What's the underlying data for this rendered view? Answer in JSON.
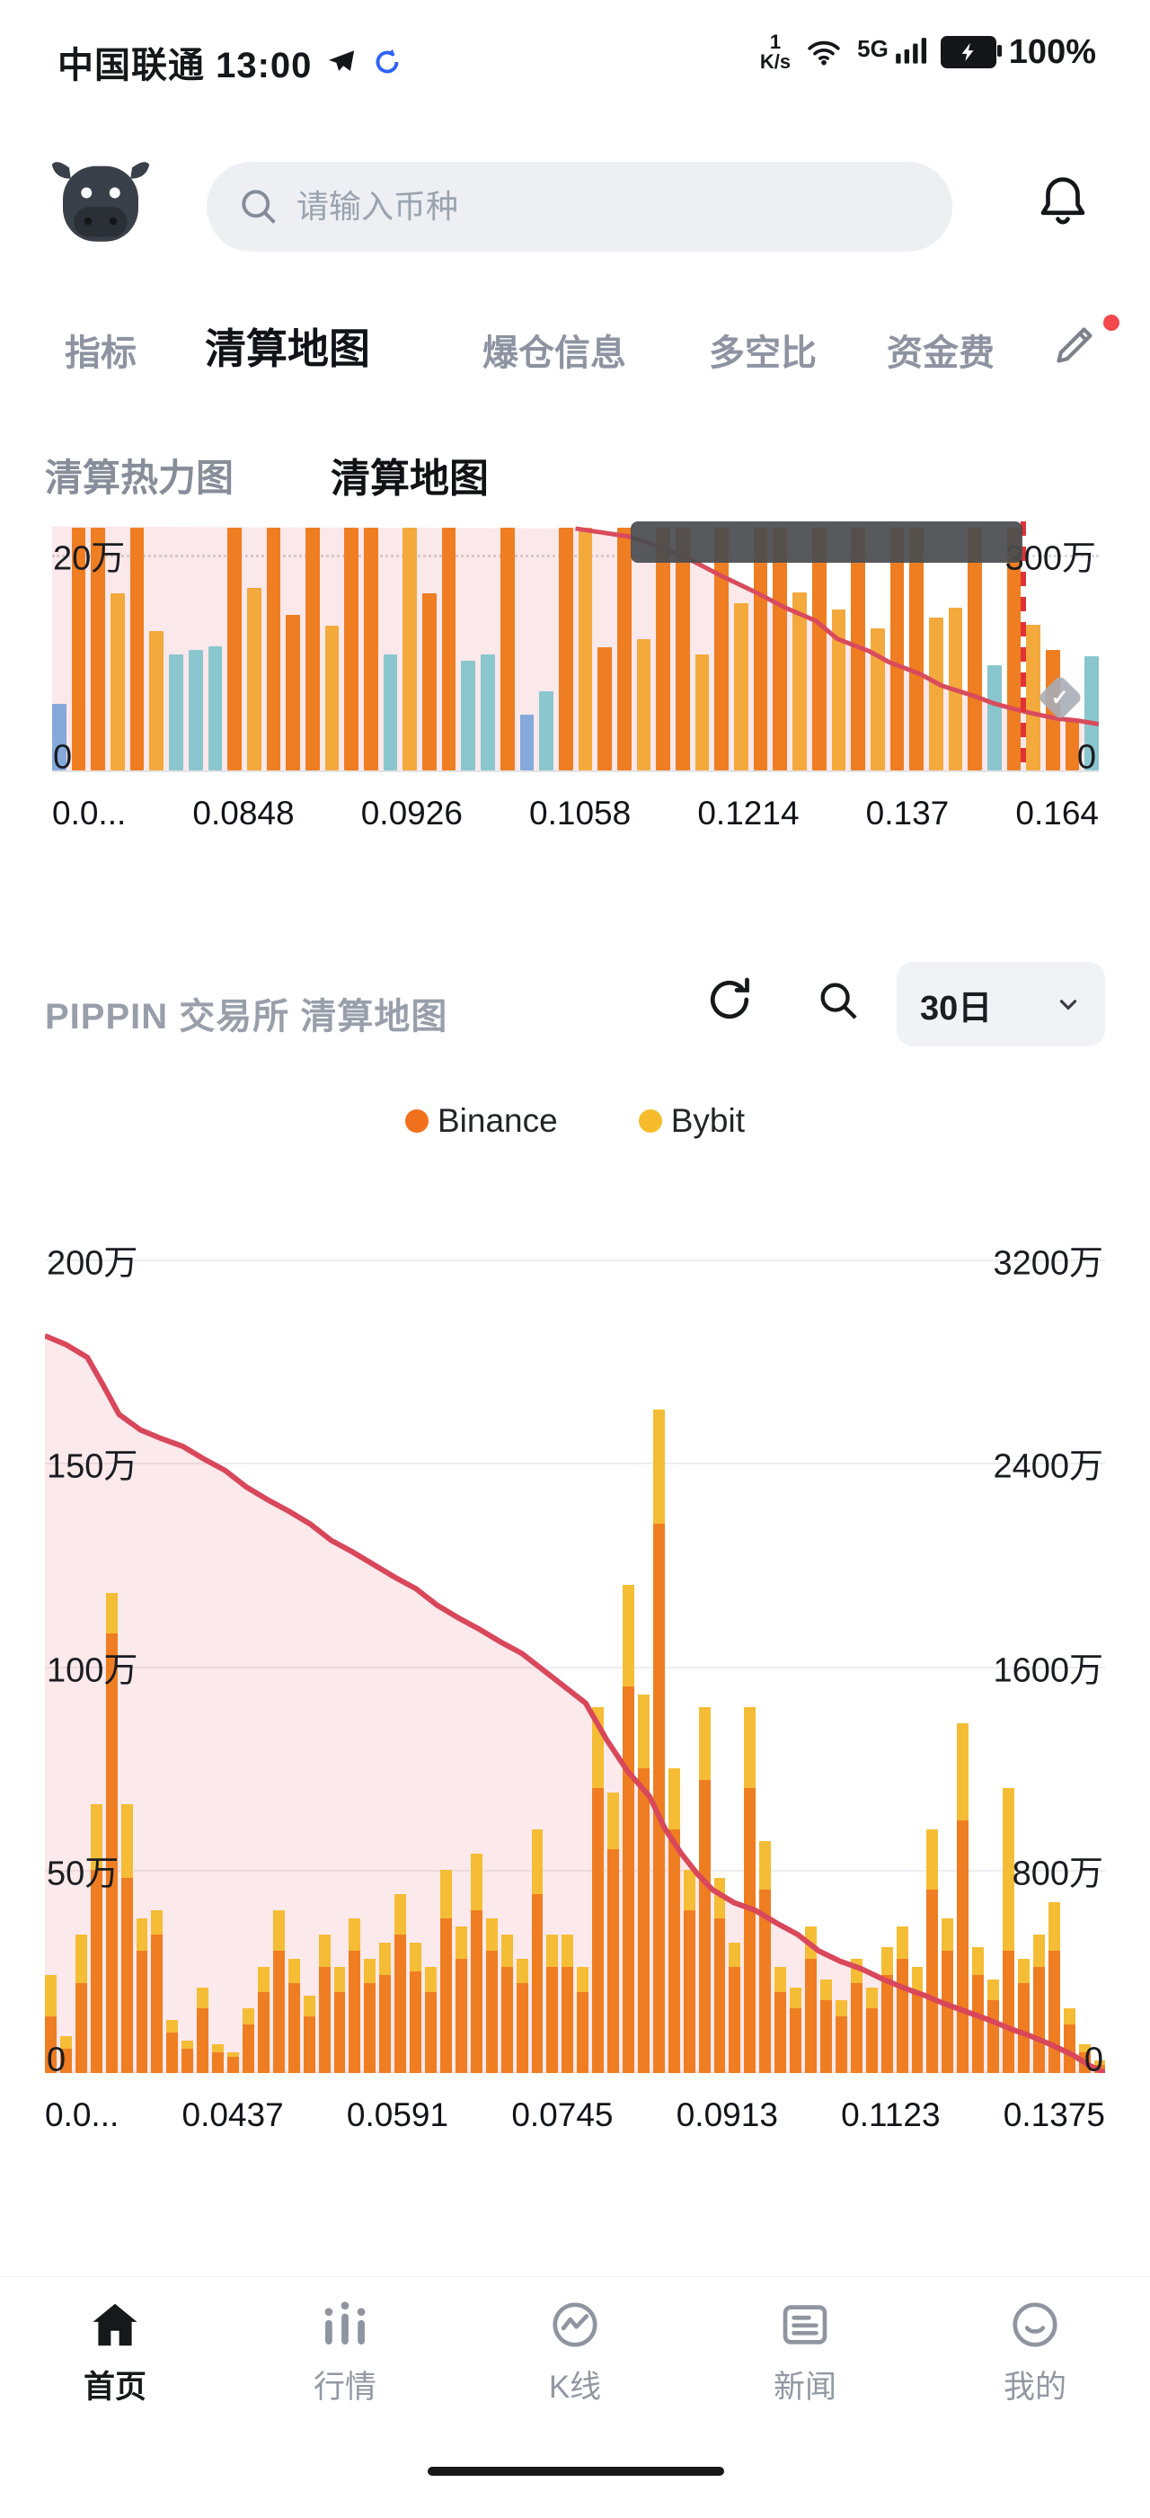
{
  "status_bar": {
    "carrier_time": "中国联通 13:00",
    "speed_top": "1",
    "speed_bottom": "K/s",
    "network_label": "5G",
    "battery_percent": "100%"
  },
  "header": {
    "search_placeholder": "请输入币种"
  },
  "tabs": {
    "items": [
      {
        "label": "指标",
        "active": false
      },
      {
        "label": "清算地图",
        "active": true
      },
      {
        "label": "爆仓信息",
        "active": false
      },
      {
        "label": "多空比",
        "active": false
      },
      {
        "label": "资金费",
        "active": false
      }
    ]
  },
  "subtabs": [
    {
      "label": "清算热力图",
      "active": false
    },
    {
      "label": "清算地图",
      "active": true
    }
  ],
  "section": {
    "title": "PIPPIN 交易所 清算地图",
    "range_label": "30日"
  },
  "legend": [
    {
      "label": "Binance",
      "color": "#f2711c"
    },
    {
      "label": "Bybit",
      "color": "#f5bb2b"
    }
  ],
  "bottom_nav": [
    {
      "label": "首页",
      "active": true
    },
    {
      "label": "行情",
      "active": false
    },
    {
      "label": "K线",
      "active": false
    },
    {
      "label": "新闻",
      "active": false
    },
    {
      "label": "我的",
      "active": false
    }
  ],
  "chart_data": [
    {
      "type": "bar+line",
      "left_axis": {
        "ticks": [
          "20万",
          "0"
        ],
        "plot_max_wan": 23.2
      },
      "right_axis": {
        "ticks": [
          "300万",
          "0"
        ],
        "plot_max_wan": 350
      },
      "x_ticks": [
        "0.0...",
        "0.0848",
        "0.0926",
        "0.1058",
        "0.1214",
        "0.137",
        "0.164"
      ],
      "bar_unit": "万",
      "bars": [
        [
          6.2,
          "blue"
        ],
        [
          22.6,
          "orange"
        ],
        [
          22.6,
          "orange"
        ],
        [
          16.5,
          "amber"
        ],
        [
          22.6,
          "orange"
        ],
        [
          13,
          "amber"
        ],
        [
          10.8,
          "teal"
        ],
        [
          11.2,
          "teal"
        ],
        [
          11.6,
          "teal"
        ],
        [
          22.6,
          "orange"
        ],
        [
          17,
          "amber"
        ],
        [
          22.6,
          "orange"
        ],
        [
          14.5,
          "orange"
        ],
        [
          22.6,
          "orange"
        ],
        [
          13.5,
          "amber"
        ],
        [
          22.6,
          "orange"
        ],
        [
          22.6,
          "orange"
        ],
        [
          10.8,
          "teal"
        ],
        [
          22.6,
          "amber"
        ],
        [
          16.5,
          "orange"
        ],
        [
          22.6,
          "orange"
        ],
        [
          10.2,
          "teal"
        ],
        [
          10.8,
          "teal"
        ],
        [
          22.6,
          "orange"
        ],
        [
          5.2,
          "blue"
        ],
        [
          7.4,
          "teal"
        ],
        [
          22.6,
          "orange"
        ],
        [
          22.6,
          "amber"
        ],
        [
          11.5,
          "orange"
        ],
        [
          22.6,
          "orange"
        ],
        [
          12.2,
          "amber"
        ],
        [
          22.6,
          "orange"
        ],
        [
          22.6,
          "orange"
        ],
        [
          10.8,
          "amber"
        ],
        [
          22.6,
          "orange"
        ],
        [
          15.6,
          "amber"
        ],
        [
          22.6,
          "orange"
        ],
        [
          22.6,
          "orange"
        ],
        [
          16.6,
          "amber"
        ],
        [
          22.6,
          "orange"
        ],
        [
          15,
          "amber"
        ],
        [
          22.6,
          "orange"
        ],
        [
          13.2,
          "amber"
        ],
        [
          22.6,
          "orange"
        ],
        [
          22.6,
          "orange"
        ],
        [
          14.2,
          "amber"
        ],
        [
          15.2,
          "amber"
        ],
        [
          22.6,
          "orange"
        ],
        [
          9.8,
          "teal"
        ],
        [
          22.6,
          "orange"
        ],
        [
          13.6,
          "amber"
        ],
        [
          11.2,
          "orange"
        ],
        [
          4.6,
          "orange"
        ],
        [
          10.6,
          "teal"
        ]
      ],
      "line": {
        "axis": "right",
        "points": [
          [
            0.5,
            340
          ],
          [
            0.55,
            329
          ],
          [
            0.58,
            315
          ],
          [
            0.61,
            296
          ],
          [
            0.64,
            273
          ],
          [
            0.67,
            252
          ],
          [
            0.7,
            229
          ],
          [
            0.73,
            210
          ],
          [
            0.75,
            185
          ],
          [
            0.78,
            168
          ],
          [
            0.8,
            152
          ],
          [
            0.83,
            135
          ],
          [
            0.85,
            119
          ],
          [
            0.88,
            105
          ],
          [
            0.9,
            94
          ],
          [
            0.92,
            86
          ],
          [
            0.94,
            79
          ],
          [
            0.96,
            73
          ],
          [
            0.98,
            70
          ],
          [
            1,
            65
          ]
        ]
      },
      "marker_x_fraction": 0.927,
      "colors": {
        "orange": "#ef7d22",
        "amber": "#f3a93c",
        "teal": "#8ac6ce",
        "blue": "#84a9da",
        "line": "#d94b5c",
        "area": "rgba(222,76,90,0.13)",
        "dashed": "#e03236"
      }
    },
    {
      "type": "stacked-bar+line",
      "series": [
        "Binance",
        "Bybit"
      ],
      "left_axis": {
        "ticks": [
          "200万",
          "150万",
          "100万",
          "50万",
          "0"
        ],
        "plot_max_wan": 200
      },
      "right_axis": {
        "ticks": [
          "3200万",
          "2400万",
          "1600万",
          "800万",
          "0"
        ],
        "plot_max_wan": 3200
      },
      "x_ticks": [
        "0.0...",
        "0.0437",
        "0.0591",
        "0.0745",
        "0.0913",
        "0.1123",
        "0.1375"
      ],
      "bar_unit": "万",
      "bars": [
        [
          14,
          10
        ],
        [
          6,
          3
        ],
        [
          22,
          12
        ],
        [
          50,
          16
        ],
        [
          108,
          10
        ],
        [
          48,
          18
        ],
        [
          30,
          8
        ],
        [
          34,
          6
        ],
        [
          10,
          3
        ],
        [
          6,
          2
        ],
        [
          16,
          5
        ],
        [
          5,
          2
        ],
        [
          4,
          1
        ],
        [
          12,
          4
        ],
        [
          20,
          6
        ],
        [
          30,
          10
        ],
        [
          22,
          6
        ],
        [
          14,
          5
        ],
        [
          26,
          8
        ],
        [
          20,
          6
        ],
        [
          30,
          8
        ],
        [
          22,
          6
        ],
        [
          24,
          8
        ],
        [
          34,
          10
        ],
        [
          25,
          7
        ],
        [
          20,
          6
        ],
        [
          38,
          12
        ],
        [
          28,
          8
        ],
        [
          40,
          14
        ],
        [
          30,
          8
        ],
        [
          26,
          8
        ],
        [
          22,
          6
        ],
        [
          44,
          16
        ],
        [
          26,
          8
        ],
        [
          26,
          8
        ],
        [
          20,
          6
        ],
        [
          70,
          20
        ],
        [
          55,
          14
        ],
        [
          95,
          25
        ],
        [
          75,
          18
        ],
        [
          135,
          28
        ],
        [
          60,
          15
        ],
        [
          40,
          10
        ],
        [
          72,
          18
        ],
        [
          38,
          10
        ],
        [
          26,
          6
        ],
        [
          70,
          20
        ],
        [
          45,
          12
        ],
        [
          20,
          6
        ],
        [
          16,
          5
        ],
        [
          28,
          8
        ],
        [
          18,
          5
        ],
        [
          14,
          4
        ],
        [
          22,
          6
        ],
        [
          16,
          5
        ],
        [
          24,
          7
        ],
        [
          28,
          8
        ],
        [
          20,
          6
        ],
        [
          45,
          15
        ],
        [
          30,
          8
        ],
        [
          62,
          24
        ],
        [
          24,
          7
        ],
        [
          18,
          5
        ],
        [
          30,
          40
        ],
        [
          22,
          6
        ],
        [
          26,
          8
        ],
        [
          30,
          12
        ],
        [
          12,
          4
        ],
        [
          5,
          2
        ],
        [
          2,
          1
        ]
      ],
      "line": {
        "axis": "right",
        "points": [
          [
            0,
            2900
          ],
          [
            0.02,
            2865
          ],
          [
            0.04,
            2815
          ],
          [
            0.055,
            2705
          ],
          [
            0.07,
            2590
          ],
          [
            0.09,
            2530
          ],
          [
            0.11,
            2495
          ],
          [
            0.13,
            2465
          ],
          [
            0.15,
            2415
          ],
          [
            0.17,
            2370
          ],
          [
            0.19,
            2305
          ],
          [
            0.21,
            2255
          ],
          [
            0.23,
            2210
          ],
          [
            0.25,
            2160
          ],
          [
            0.27,
            2095
          ],
          [
            0.29,
            2050
          ],
          [
            0.31,
            2000
          ],
          [
            0.33,
            1950
          ],
          [
            0.35,
            1905
          ],
          [
            0.37,
            1840
          ],
          [
            0.39,
            1790
          ],
          [
            0.41,
            1745
          ],
          [
            0.43,
            1695
          ],
          [
            0.45,
            1650
          ],
          [
            0.47,
            1585
          ],
          [
            0.49,
            1520
          ],
          [
            0.51,
            1455
          ],
          [
            0.53,
            1310
          ],
          [
            0.55,
            1185
          ],
          [
            0.57,
            1090
          ],
          [
            0.585,
            960
          ],
          [
            0.6,
            865
          ],
          [
            0.615,
            785
          ],
          [
            0.63,
            720
          ],
          [
            0.65,
            670
          ],
          [
            0.67,
            640
          ],
          [
            0.69,
            590
          ],
          [
            0.71,
            545
          ],
          [
            0.73,
            480
          ],
          [
            0.75,
            440
          ],
          [
            0.77,
            410
          ],
          [
            0.79,
            370
          ],
          [
            0.81,
            335
          ],
          [
            0.83,
            305
          ],
          [
            0.85,
            270
          ],
          [
            0.87,
            240
          ],
          [
            0.89,
            210
          ],
          [
            0.91,
            175
          ],
          [
            0.93,
            145
          ],
          [
            0.95,
            110
          ],
          [
            0.97,
            70
          ],
          [
            0.985,
            30
          ],
          [
            1,
            0
          ]
        ]
      },
      "colors": {
        "binance": "#ef7d22",
        "bybit": "#f5bd35",
        "line": "#d9475a",
        "area": "rgba(222,76,90,0.12)"
      }
    }
  ]
}
